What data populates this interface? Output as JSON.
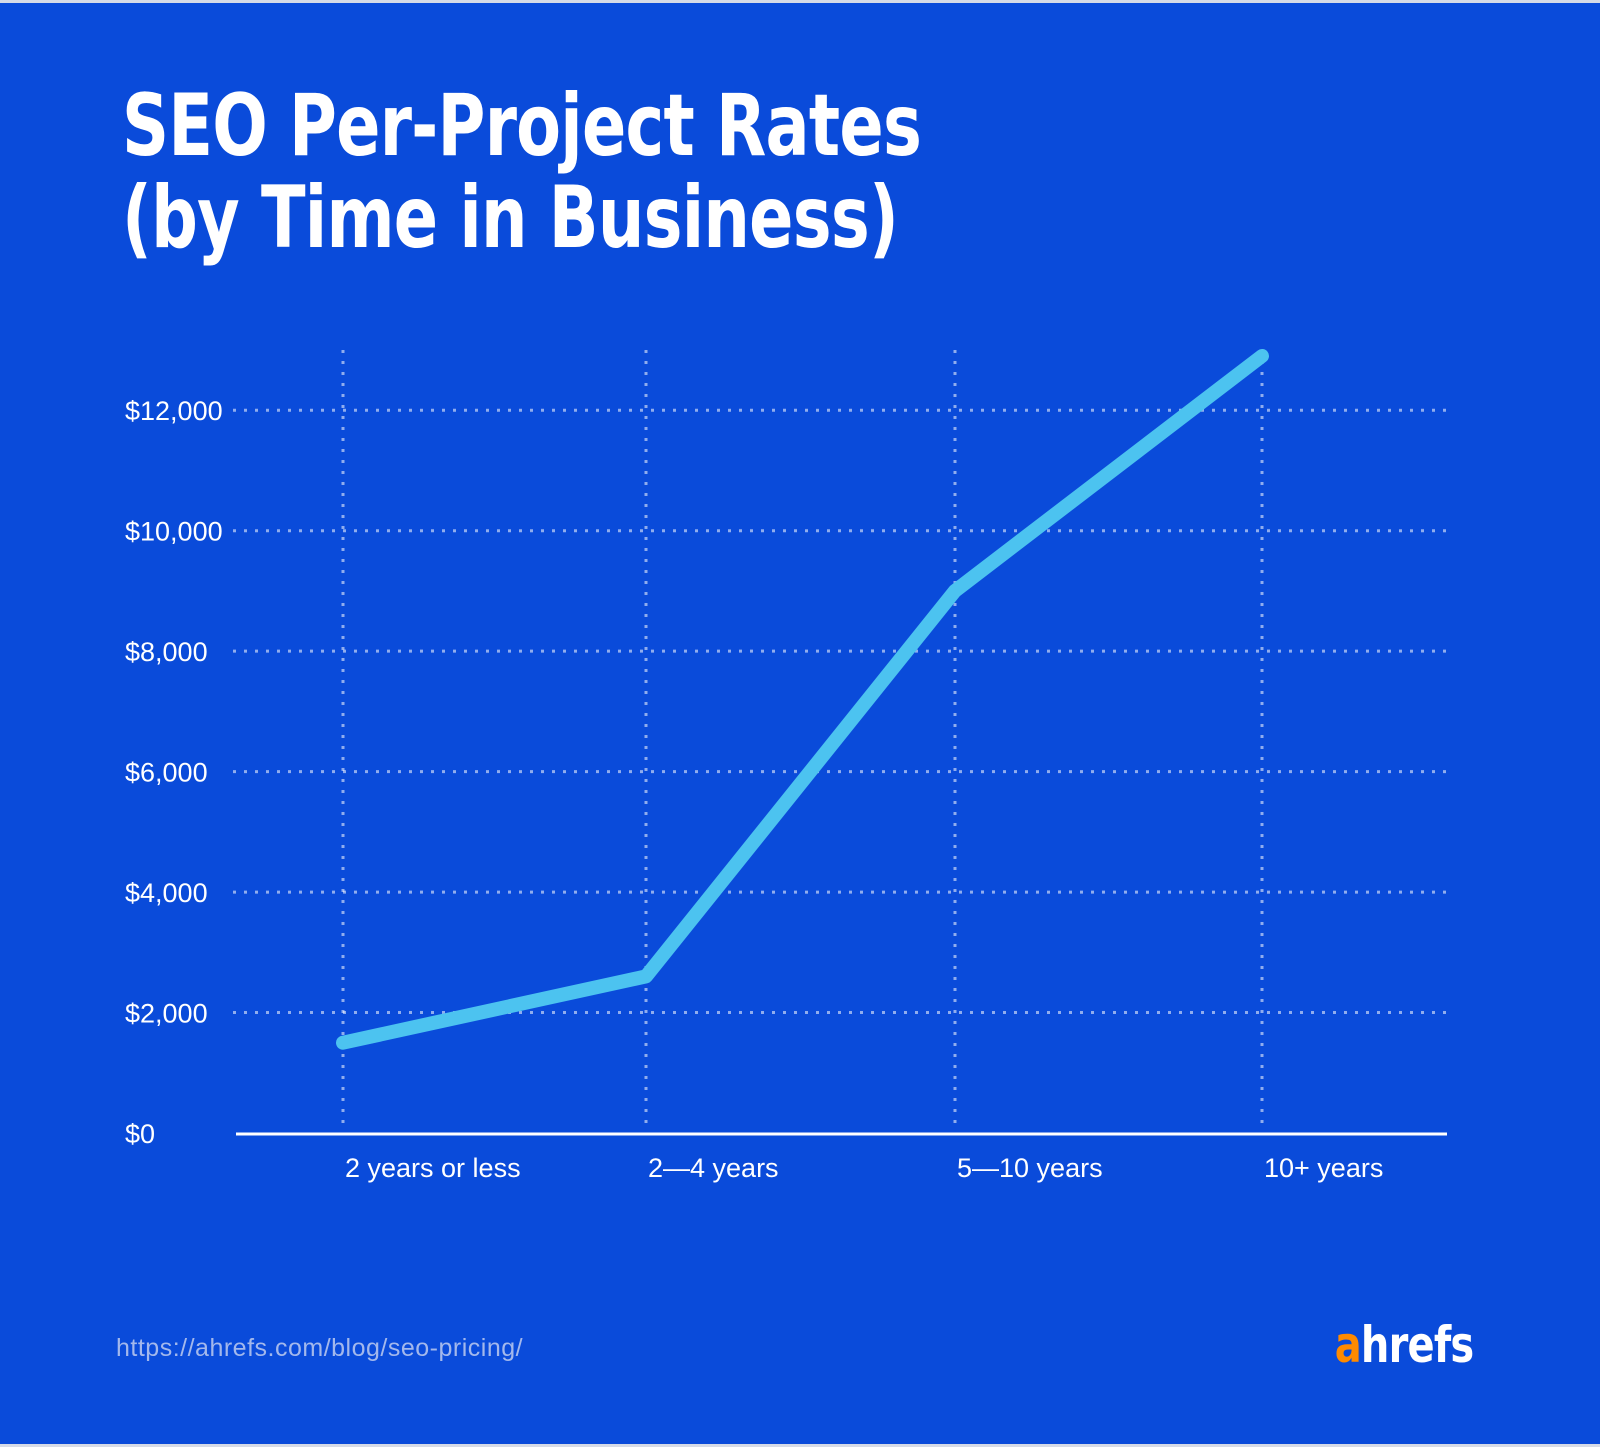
{
  "title": {
    "line1": "SEO Per-Project Rates",
    "line2": "(by Time in Business)"
  },
  "footer": {
    "url": "https://ahrefs.com/blog/seo-pricing/",
    "logo_prefix": "a",
    "logo_rest": "hrefs"
  },
  "colors": {
    "background": "#0a4bda",
    "line": "#4cc3f0",
    "grid": "rgba(255,255,255,0.55)",
    "axis": "#ffffff",
    "tick_text": "#ffffff",
    "url_text": "#a3b8ec",
    "logo_orange": "#ff8a00",
    "logo_white": "#ffffff",
    "edge_strip": "#d6dbe7"
  },
  "chart_data": {
    "type": "line",
    "title": "SEO Per-Project Rates (by Time in Business)",
    "categories": [
      "2 years or less",
      "2—4 years",
      "5—10 years",
      "10+ years"
    ],
    "values": [
      1500,
      2600,
      9000,
      12900
    ],
    "xlabel": "",
    "ylabel": "",
    "ylim": [
      0,
      13000
    ],
    "yticks": [
      0,
      2000,
      4000,
      6000,
      8000,
      10000,
      12000
    ],
    "ytick_labels": [
      "$0",
      "$2,000",
      "$4,000",
      "$6,000",
      "$8,000",
      "$10,000",
      "$12,000"
    ],
    "grid": "dotted",
    "legend": "none"
  }
}
